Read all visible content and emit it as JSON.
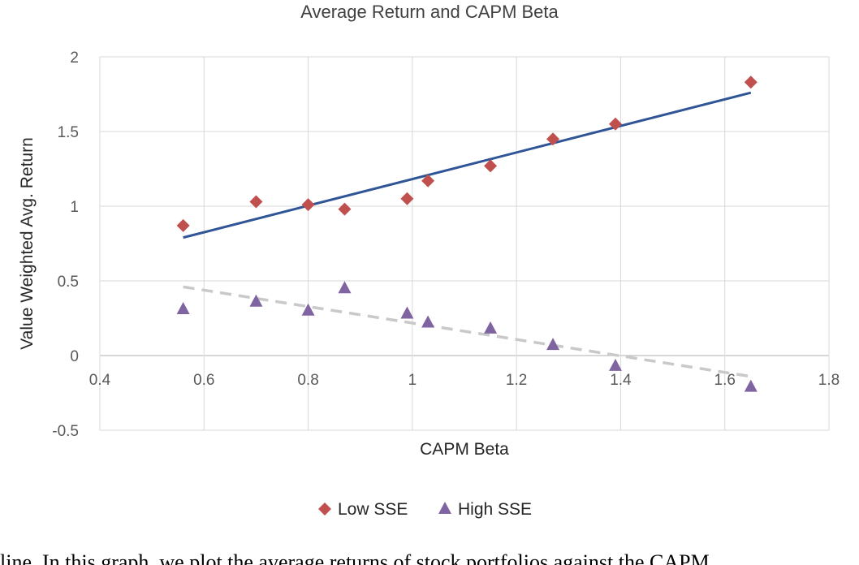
{
  "chart_data": {
    "type": "scatter",
    "title": "Average Return and CAPM Beta",
    "xlabel": "CAPM Beta",
    "ylabel": "Value Weighted Avg. Return",
    "xlim": [
      0.4,
      1.8
    ],
    "ylim": [
      -0.5,
      2
    ],
    "x_ticks": [
      "0.4",
      "0.6",
      "0.8",
      "1",
      "1.2",
      "1.4",
      "1.6",
      "1.8"
    ],
    "y_ticks": [
      "-0.5",
      "0",
      "0.5",
      "1",
      "1.5",
      "2"
    ],
    "grid": true,
    "legend_position": "bottom",
    "series": [
      {
        "name": "Low SSE",
        "marker": "diamond",
        "color": "#c0504d",
        "x": [
          0.56,
          0.7,
          0.8,
          0.87,
          0.99,
          1.03,
          1.15,
          1.27,
          1.39,
          1.65
        ],
        "y": [
          0.87,
          1.03,
          1.01,
          0.98,
          1.05,
          1.17,
          1.27,
          1.45,
          1.55,
          1.83
        ],
        "trendline": {
          "style": "solid",
          "color": "#2f5597",
          "x": [
            0.56,
            1.65
          ],
          "y": [
            0.79,
            1.76
          ]
        }
      },
      {
        "name": "High SSE",
        "marker": "triangle",
        "color": "#8064a2",
        "x": [
          0.56,
          0.7,
          0.8,
          0.87,
          0.99,
          1.03,
          1.15,
          1.27,
          1.39,
          1.65
        ],
        "y": [
          0.31,
          0.36,
          0.3,
          0.45,
          0.28,
          0.22,
          0.18,
          0.07,
          -0.07,
          -0.21
        ],
        "trendline": {
          "style": "dashed",
          "color": "#c9c9c9",
          "x": [
            0.56,
            1.65
          ],
          "y": [
            0.46,
            -0.14
          ]
        }
      }
    ]
  },
  "caption_fragment": "line. In this graph, we plot the average returns of stock portfolios against the CAPM"
}
